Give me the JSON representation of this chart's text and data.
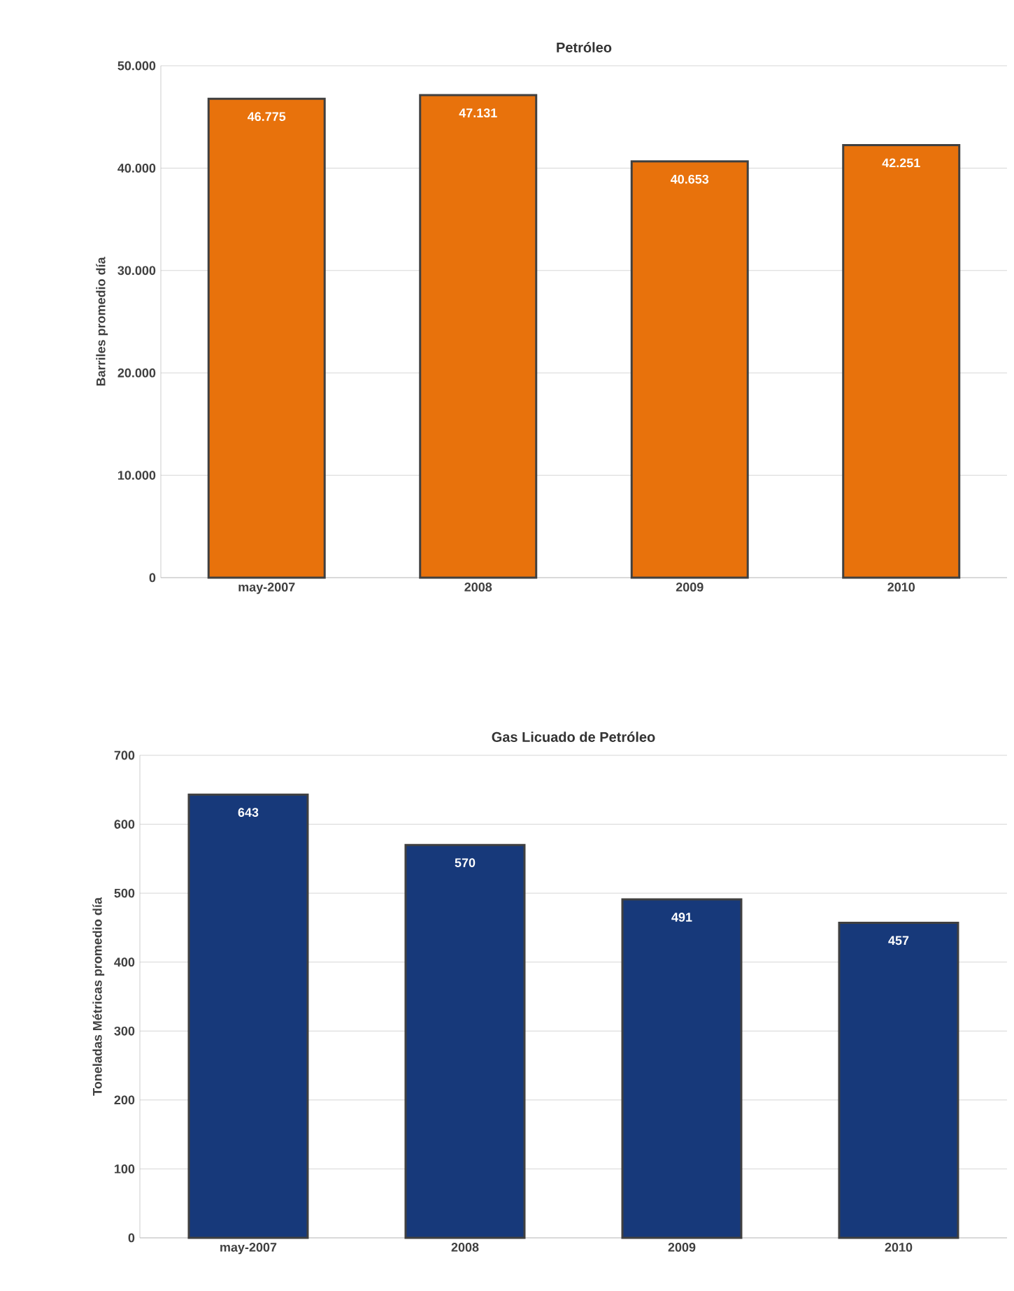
{
  "chart_data": [
    {
      "type": "bar",
      "title": "Petróleo",
      "ylabel": "Barriles promedio día",
      "categories": [
        "may-2007",
        "2008",
        "2009",
        "2010"
      ],
      "values": [
        46775,
        47131,
        40653,
        42251
      ],
      "value_labels": [
        "46.775",
        "47.131",
        "40.653",
        "42.251"
      ],
      "color": "#e8720c",
      "ylim": [
        0,
        50000
      ],
      "yticks": [
        {
          "value": 0,
          "label": "0"
        },
        {
          "value": 10000,
          "label": "10.000"
        },
        {
          "value": 20000,
          "label": "20.000"
        },
        {
          "value": 30000,
          "label": "30.000"
        },
        {
          "value": 40000,
          "label": "40.000"
        },
        {
          "value": 50000,
          "label": "50.000"
        }
      ],
      "grid": "y"
    },
    {
      "type": "bar",
      "title": "Gas Licuado de Petróleo",
      "ylabel": "Toneladas Métricas promedio día",
      "categories": [
        "may-2007",
        "2008",
        "2009",
        "2010"
      ],
      "values": [
        643,
        570,
        491,
        457
      ],
      "data_labels": true,
      "color": "#17397a",
      "ylim": [
        0,
        700
      ],
      "yticks": [
        0,
        100,
        200,
        300,
        400,
        500,
        600,
        700
      ],
      "grid": "y"
    }
  ]
}
